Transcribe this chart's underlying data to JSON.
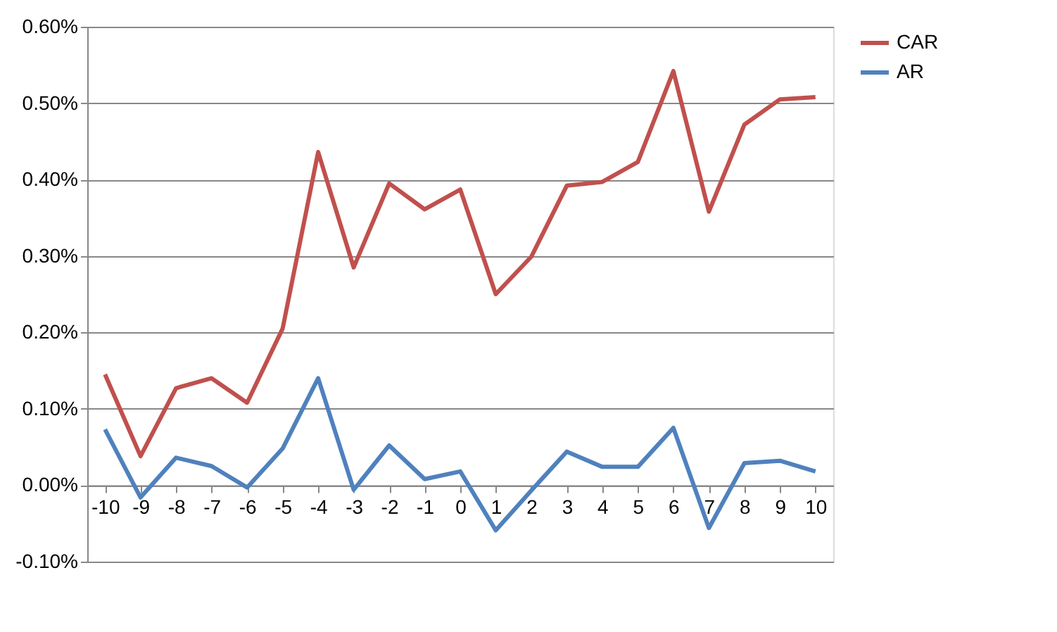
{
  "chart_data": {
    "type": "line",
    "categories": [
      "-10",
      "-9",
      "-8",
      "-7",
      "-6",
      "-5",
      "-4",
      "-3",
      "-2",
      "-1",
      "0",
      "1",
      "2",
      "3",
      "4",
      "5",
      "6",
      "7",
      "8",
      "9",
      "10"
    ],
    "series": [
      {
        "name": "CAR",
        "color": "#c0504d",
        "values": [
          0.145,
          0.038,
          0.127,
          0.14,
          0.108,
          0.205,
          0.436,
          0.285,
          0.395,
          0.361,
          0.387,
          0.25,
          0.299,
          0.392,
          0.397,
          0.423,
          0.542,
          0.358,
          0.472,
          0.505,
          0.508
        ]
      },
      {
        "name": "AR",
        "color": "#4f81bd",
        "values": [
          0.073,
          -0.016,
          0.036,
          0.025,
          -0.003,
          0.048,
          0.14,
          -0.006,
          0.052,
          0.008,
          0.018,
          -0.059,
          -0.007,
          0.044,
          0.024,
          0.024,
          0.075,
          -0.056,
          0.029,
          0.032,
          0.018
        ]
      }
    ],
    "ylim": [
      -0.1,
      0.6
    ],
    "yticks": [
      {
        "value": -0.1,
        "label": "-0.10%"
      },
      {
        "value": 0,
        "label": "0.00%"
      },
      {
        "value": 0.1,
        "label": "0.10%"
      },
      {
        "value": 0.2,
        "label": "0.20%"
      },
      {
        "value": 0.3,
        "label": "0.30%"
      },
      {
        "value": 0.4,
        "label": "0.40%"
      },
      {
        "value": 0.5,
        "label": "0.50%"
      },
      {
        "value": 0.6,
        "label": "0.60%"
      }
    ],
    "grid": "y",
    "legend": "right",
    "marker": "none",
    "line_style": "solid"
  }
}
